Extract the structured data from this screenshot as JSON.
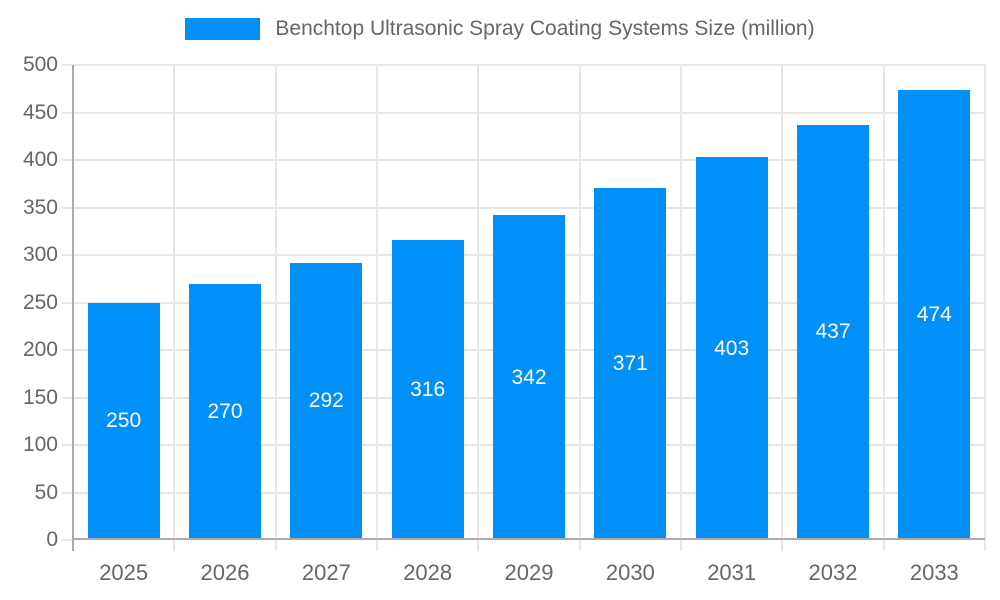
{
  "chart_data": {
    "type": "bar",
    "title": "Benchtop Ultrasonic Spray Coating Systems Size (million)",
    "categories": [
      "2025",
      "2026",
      "2027",
      "2028",
      "2029",
      "2030",
      "2031",
      "2032",
      "2033"
    ],
    "values": [
      250,
      270,
      292,
      316,
      342,
      371,
      403,
      437,
      474
    ],
    "xlabel": "",
    "ylabel": "",
    "ylim": [
      0,
      500
    ],
    "ytick_step": 50,
    "yticks": [
      "0",
      "50",
      "100",
      "150",
      "200",
      "250",
      "300",
      "350",
      "400",
      "450",
      "500"
    ],
    "grid": true,
    "legend_position": "top",
    "bar_value_labels_visible": true,
    "colors": {
      "bar": "#0090F8",
      "value_label": "#FFFFFF",
      "axis_text": "#666666",
      "axis_line": "#ABABAB",
      "gridline": "#E6E6E6",
      "background": "#FFFFFF"
    }
  }
}
